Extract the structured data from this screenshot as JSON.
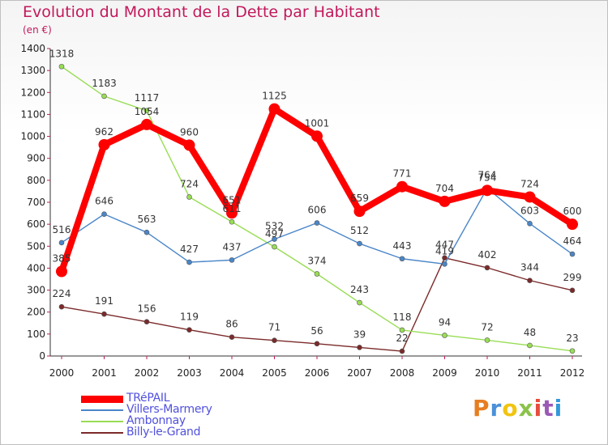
{
  "brand": {
    "logo_text": "Proxiti",
    "logo_colors": [
      "#e67e22",
      "#4a90d9",
      "#f1c40f",
      "#8bc34a",
      "#e74c3c",
      "#9b59b6",
      "#3498db"
    ]
  },
  "chart_data": {
    "type": "line",
    "title": "Evolution du Montant de la Dette par Habitant",
    "subtitle": "(en €)",
    "xlabel": "",
    "ylabel": "",
    "categories": [
      "2000",
      "2001",
      "2002",
      "2003",
      "2004",
      "2005",
      "2006",
      "2007",
      "2008",
      "2009",
      "2010",
      "2011",
      "2012"
    ],
    "ylim": [
      0,
      1400
    ],
    "yticks": [
      0,
      100,
      200,
      300,
      400,
      500,
      600,
      700,
      800,
      900,
      1000,
      1100,
      1200,
      1300,
      1400
    ],
    "grid": false,
    "legend_position": "bottom-left",
    "series": [
      {
        "name": "TRéPAIL",
        "color": "#ff0000",
        "values": [
          385,
          962,
          1054,
          960,
          651,
          1125,
          1001,
          659,
          771,
          704,
          754,
          724,
          600
        ]
      },
      {
        "name": "Villers-Marmery",
        "color": "#4a86c8",
        "values": [
          516,
          646,
          563,
          427,
          437,
          532,
          606,
          512,
          443,
          419,
          764,
          603,
          464
        ]
      },
      {
        "name": "Ambonnay",
        "color": "#99dd55",
        "values": [
          1318,
          1183,
          1117,
          724,
          611,
          497,
          374,
          243,
          118,
          94,
          72,
          48,
          23
        ]
      },
      {
        "name": "Billy-le-Grand",
        "color": "#7b2a2a",
        "values": [
          224,
          191,
          156,
          119,
          86,
          71,
          56,
          39,
          22,
          447,
          402,
          344,
          299
        ]
      }
    ]
  }
}
